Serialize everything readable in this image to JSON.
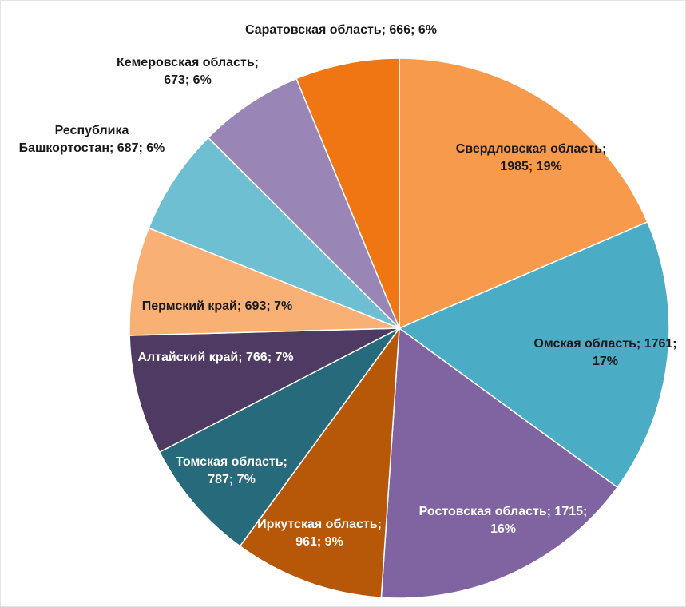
{
  "chart_data": {
    "type": "pie",
    "values": [
      1985,
      1761,
      1715,
      961,
      787,
      766,
      693,
      687,
      673,
      666
    ],
    "value_labels": [
      "Свердловская область; 1985; 19%",
      "Омская область; 1761; 17%",
      "Ростовская область; 1715; 16%",
      "Иркутская область; 961; 9%",
      "Томская область; 787; 7%",
      "Алтайский край; 766; 7%",
      "Пермский край; 693; 7%",
      "Республика Башкортостан; 687; 6%",
      "Кемеровская область; 673; 6%",
      "Саратовская область; 666; 6%"
    ],
    "colors": [
      "#f79a4b",
      "#4bacc6",
      "#8064a2",
      "#b75708",
      "#276a7c",
      "#4f3a63",
      "#f9b074",
      "#6fbfd3",
      "#9a86b6",
      "#f07513"
    ]
  }
}
